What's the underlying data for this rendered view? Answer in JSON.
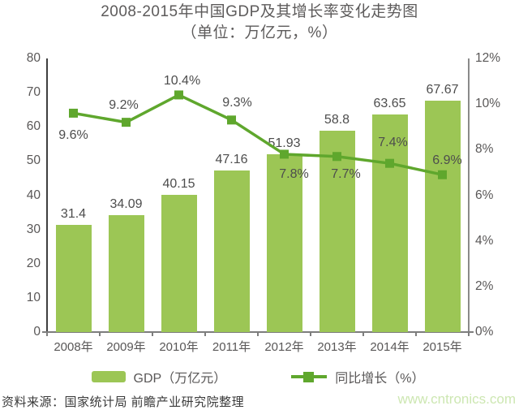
{
  "title": "2008-2015年中国GDP及其增长率变化走势图",
  "subtitle": "（单位：万亿元，%）",
  "source_note": "资料来源：国家统计局 前瞻产业研究院整理",
  "watermark": "www.cntronics.com",
  "legend": {
    "gdp": "GDP（万亿元）",
    "growth": "同比增长（%）"
  },
  "colors": {
    "bar": "#9cc655",
    "line": "#5fa72d",
    "axis_text": "#595757",
    "value_label": "#4d4d4d",
    "title_text": "#5d5b5b",
    "source_text": "#3a3a3a",
    "watermark_text": "#cde7b2",
    "left_axis_line": "#3f3f3f",
    "right_axis_line": "#8a8a8a",
    "bottom_axis_line": "#7d7d7d"
  },
  "chart_data": {
    "type": "bar+line combo",
    "categories": [
      "2008年",
      "2009年",
      "2010年",
      "2011年",
      "2012年",
      "2013年",
      "2014年",
      "2015年"
    ],
    "series": [
      {
        "name": "GDP（万亿元）",
        "type": "bar",
        "axis": "left",
        "values": [
          31.4,
          34.09,
          40.15,
          47.16,
          51.93,
          58.8,
          63.65,
          67.67
        ],
        "data_labels": [
          "31.4",
          "34.09",
          "40.15",
          "47.16",
          "51.93",
          "58.8",
          "63.65",
          "67.67"
        ]
      },
      {
        "name": "同比增长（%）",
        "type": "line",
        "axis": "right",
        "values": [
          9.6,
          9.2,
          10.4,
          9.3,
          7.8,
          7.7,
          7.4,
          6.9
        ],
        "data_labels": [
          "9.6%",
          "9.2%",
          "10.4%",
          "9.3%",
          "7.8%",
          "7.7%",
          "7.4%",
          "6.9%"
        ],
        "label_offsets": [
          [
            0,
            28
          ],
          [
            -3,
            -21
          ],
          [
            4,
            -17
          ],
          [
            7,
            -21
          ],
          [
            12,
            25
          ],
          [
            11,
            22
          ],
          [
            4,
            -25
          ],
          [
            6,
            -17
          ]
        ]
      }
    ],
    "left_axis": {
      "min": 0,
      "max": 80,
      "tick_labels": [
        "80",
        "70",
        "60",
        "50",
        "40",
        "30",
        "20",
        "10",
        "0"
      ]
    },
    "right_axis": {
      "min": 0,
      "max": 12,
      "tick_labels": [
        "12%",
        "10%",
        "8%",
        "6%",
        "4%",
        "2%",
        "0%"
      ]
    },
    "grid": false,
    "legend_position": "bottom",
    "marker": "square"
  }
}
